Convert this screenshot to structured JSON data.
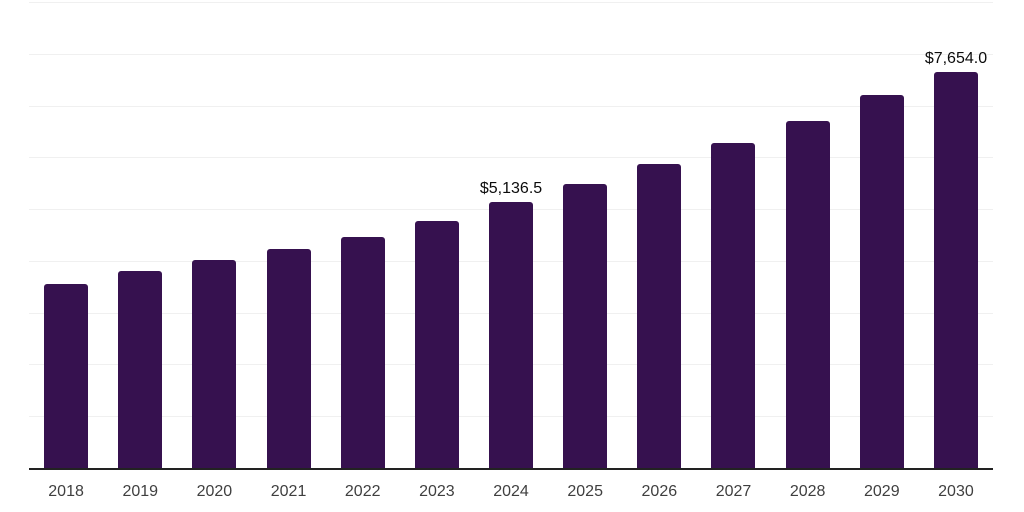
{
  "chart_data": {
    "type": "bar",
    "title": "",
    "xlabel": "",
    "ylabel": "",
    "categories": [
      "2018",
      "2019",
      "2020",
      "2021",
      "2022",
      "2023",
      "2024",
      "2025",
      "2026",
      "2027",
      "2028",
      "2029",
      "2030"
    ],
    "values": [
      3555,
      3805,
      4025,
      4230,
      4465,
      4775,
      5136.5,
      5490,
      5875,
      6270,
      6705,
      7200,
      7654
    ],
    "value_labels": {
      "2024": "$5,136.5",
      "2030": "$7,654.0"
    },
    "ylim": [
      0,
      9000
    ],
    "gridline_step": 1000,
    "grid": true,
    "legend_position": "none",
    "colors": {
      "bar": "#36114F",
      "gridline": "#f0f0f0",
      "axis_line": "#222222",
      "value_label": "#0b0b0b",
      "tick_label": "#3f3f3f",
      "background": "#ffffff"
    }
  }
}
